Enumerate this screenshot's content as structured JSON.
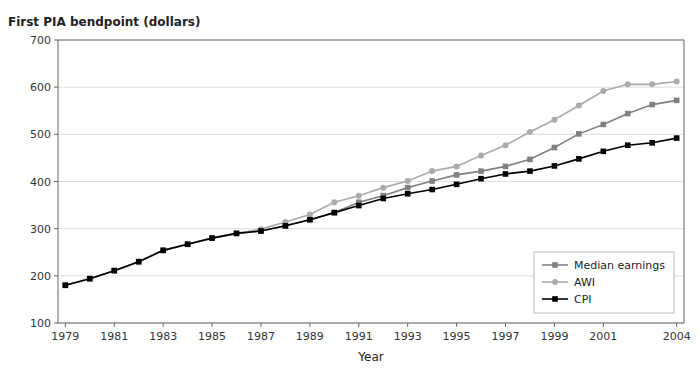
{
  "chart_data": {
    "type": "line",
    "xlabel": "Year",
    "ylabel": "First PIA bendpoint (dollars)",
    "x": [
      1979,
      1980,
      1981,
      1982,
      1983,
      1984,
      1985,
      1986,
      1987,
      1988,
      1989,
      1990,
      1991,
      1992,
      1993,
      1994,
      1995,
      1996,
      1997,
      1998,
      1999,
      2000,
      2001,
      2002,
      2003,
      2004
    ],
    "series": [
      {
        "name": "Median earnings",
        "color": "#808080",
        "marker": "square",
        "values": [
          180,
          194,
          211,
          230,
          254,
          267,
          280,
          290,
          295,
          306,
          319,
          334,
          356,
          370,
          387,
          401,
          414,
          422,
          432,
          447,
          472,
          501,
          521,
          544,
          563,
          572
        ]
      },
      {
        "name": "AWI",
        "color": "#aaaaaa",
        "marker": "circle",
        "values": [
          180,
          194,
          211,
          230,
          254,
          267,
          280,
          290,
          299,
          314,
          330,
          356,
          370,
          387,
          401,
          422,
          432,
          455,
          477,
          505,
          531,
          561,
          592,
          606,
          606,
          612
        ]
      },
      {
        "name": "CPI",
        "color": "#000000",
        "marker": "square",
        "values": [
          180,
          194,
          211,
          230,
          254,
          267,
          280,
          290,
          295,
          306,
          319,
          334,
          349,
          364,
          374,
          383,
          394,
          406,
          416,
          422,
          433,
          448,
          464,
          477,
          482,
          492
        ]
      }
    ],
    "xlim": [
      1978.7,
      2004.3
    ],
    "xticks": [
      1979,
      1981,
      1983,
      1985,
      1987,
      1989,
      1991,
      1993,
      1995,
      1997,
      1999,
      2001,
      2004
    ],
    "ylim": [
      100,
      700
    ],
    "yticks": [
      100,
      200,
      300,
      400,
      500,
      600,
      700
    ],
    "grid": true,
    "legend": "lower right"
  }
}
